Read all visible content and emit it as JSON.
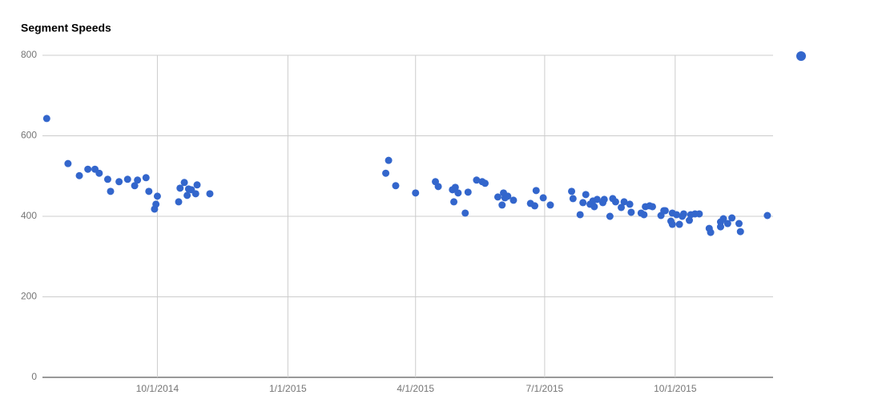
{
  "chart_data": {
    "type": "scatter",
    "title": "Segment Speeds",
    "legend": "right",
    "grid": true,
    "xlim": [
      "2014-07-12",
      "2015-12-09"
    ],
    "xticks": [
      {
        "value": "2014-10-01",
        "label": "10/1/2014"
      },
      {
        "value": "2015-01-01",
        "label": "1/1/2015"
      },
      {
        "value": "2015-04-01",
        "label": "4/1/2015"
      },
      {
        "value": "2015-07-01",
        "label": "7/1/2015"
      },
      {
        "value": "2015-10-01",
        "label": "10/1/2015"
      }
    ],
    "ylim": [
      0,
      800
    ],
    "yticks": [
      0,
      200,
      400,
      600,
      800
    ],
    "series": [
      {
        "color": "#3366cc",
        "x": [
          "2014-07-15",
          "2014-07-30",
          "2014-08-07",
          "2014-08-13",
          "2014-08-18",
          "2014-08-21",
          "2014-08-27",
          "2014-08-29",
          "2014-09-04",
          "2014-09-10",
          "2014-09-15",
          "2014-09-17",
          "2014-09-23",
          "2014-09-25",
          "2014-09-29",
          "2014-09-30",
          "2014-10-01",
          "2014-10-16",
          "2014-10-17",
          "2014-10-20",
          "2014-10-22",
          "2014-10-23",
          "2014-10-25",
          "2014-10-28",
          "2014-10-29",
          "2014-11-07",
          "2015-03-11",
          "2015-03-13",
          "2015-03-18",
          "2015-04-01",
          "2015-04-15",
          "2015-04-17",
          "2015-04-27",
          "2015-04-29",
          "2015-04-28",
          "2015-05-01",
          "2015-05-06",
          "2015-05-08",
          "2015-05-14",
          "2015-05-18",
          "2015-05-20",
          "2015-05-29",
          "2015-06-01",
          "2015-06-02",
          "2015-06-03",
          "2015-06-05",
          "2015-06-09",
          "2015-06-21",
          "2015-06-24",
          "2015-06-25",
          "2015-06-30",
          "2015-07-05",
          "2015-07-20",
          "2015-07-21",
          "2015-07-26",
          "2015-07-28",
          "2015-07-30",
          "2015-08-02",
          "2015-08-04",
          "2015-08-05",
          "2015-08-07",
          "2015-08-11",
          "2015-08-12",
          "2015-08-16",
          "2015-08-18",
          "2015-08-20",
          "2015-08-24",
          "2015-08-26",
          "2015-08-30",
          "2015-08-31",
          "2015-09-07",
          "2015-09-09",
          "2015-09-10",
          "2015-09-13",
          "2015-09-15",
          "2015-09-21",
          "2015-09-23",
          "2015-09-24",
          "2015-09-28",
          "2015-09-29",
          "2015-09-29",
          "2015-10-02",
          "2015-10-04",
          "2015-10-06",
          "2015-10-07",
          "2015-10-11",
          "2015-10-12",
          "2015-10-15",
          "2015-10-18",
          "2015-10-25",
          "2015-10-26",
          "2015-11-02",
          "2015-11-02",
          "2015-11-04",
          "2015-11-07",
          "2015-11-10",
          "2015-11-15",
          "2015-11-16",
          "2015-12-05"
        ],
        "values": [
          643,
          531,
          501,
          517,
          517,
          507,
          492,
          462,
          486,
          492,
          476,
          490,
          496,
          462,
          418,
          430,
          450,
          436,
          470,
          484,
          452,
          468,
          466,
          456,
          478,
          456,
          507,
          539,
          476,
          458,
          486,
          474,
          466,
          472,
          436,
          458,
          408,
          460,
          490,
          486,
          482,
          448,
          428,
          458,
          446,
          450,
          440,
          432,
          426,
          464,
          446,
          428,
          462,
          444,
          404,
          434,
          454,
          430,
          438,
          424,
          442,
          434,
          442,
          400,
          444,
          436,
          422,
          436,
          430,
          410,
          408,
          404,
          424,
          426,
          424,
          402,
          414,
          414,
          388,
          380,
          408,
          404,
          380,
          400,
          406,
          390,
          404,
          406,
          406,
          370,
          360,
          386,
          374,
          394,
          382,
          396,
          382,
          362,
          402
        ]
      }
    ]
  }
}
